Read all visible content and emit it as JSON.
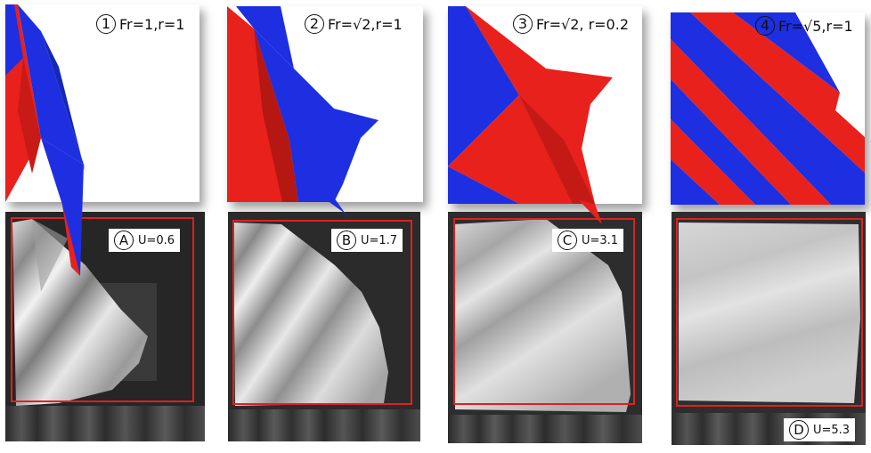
{
  "colors": {
    "red": "#e8211d",
    "blue": "#1d2fe0",
    "frame": "#e02020"
  },
  "simulations": [
    {
      "number": "1",
      "label": "Fr=1,r=1"
    },
    {
      "number": "2",
      "label": "Fr=√2,r=1"
    },
    {
      "number": "3",
      "label": "Fr=√2, r=0.2"
    },
    {
      "number": "4",
      "label": "Fr=√5,r=1"
    }
  ],
  "experiments": [
    {
      "letter": "A",
      "label": "U=0.6"
    },
    {
      "letter": "B",
      "label": "U=1.7"
    },
    {
      "letter": "C",
      "label": "U=3.1"
    },
    {
      "letter": "D",
      "label": "U=5.3"
    }
  ]
}
